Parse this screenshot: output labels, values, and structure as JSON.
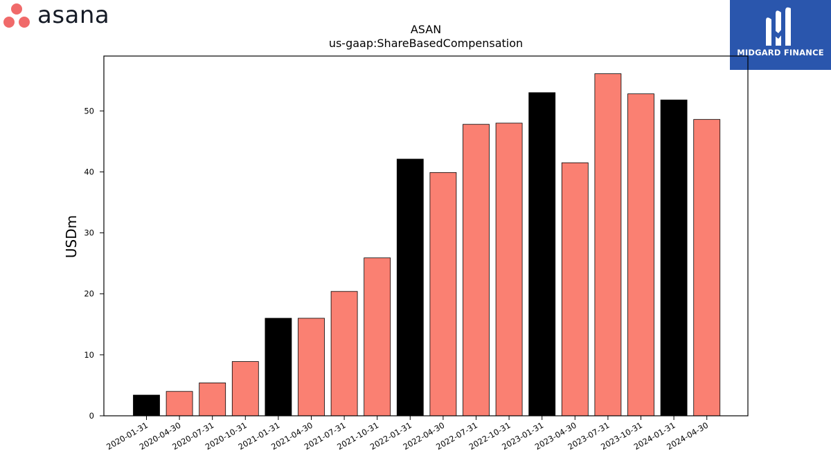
{
  "brand": {
    "logo_icon": "asana-dots-icon",
    "name": "asana",
    "dot_color": "#f06a6a"
  },
  "badge": {
    "icon": "midgard-m-icon",
    "name": "MIDGARD FINANCE",
    "background": "#2a56ad"
  },
  "chart_data": {
    "type": "bar",
    "title": "ASAN",
    "subtitle": "us-gaap:ShareBasedCompensation",
    "xlabel": "",
    "ylabel": "USDm",
    "ylim": [
      0,
      59
    ],
    "yticks": [
      0,
      10,
      20,
      30,
      40,
      50
    ],
    "grid": false,
    "legend": "none",
    "categories": [
      "2020-01-31",
      "2020-04-30",
      "2020-07-31",
      "2020-10-31",
      "2021-01-31",
      "2021-04-30",
      "2021-07-31",
      "2021-10-31",
      "2022-01-31",
      "2022-04-30",
      "2022-07-31",
      "2022-10-31",
      "2023-01-31",
      "2023-04-30",
      "2023-07-31",
      "2023-10-31",
      "2024-01-31",
      "2024-04-30"
    ],
    "values": [
      3.4,
      4.0,
      5.4,
      8.9,
      16.0,
      16.0,
      20.4,
      25.9,
      42.1,
      39.9,
      47.8,
      48.0,
      53.0,
      41.5,
      56.1,
      52.8,
      51.8,
      48.6
    ],
    "highlight_categories": [
      "2020-01-31",
      "2021-01-31",
      "2022-01-31",
      "2023-01-31",
      "2024-01-31"
    ],
    "colors": {
      "default": "#fa8072",
      "highlight": "#000000",
      "edge": "#000000"
    }
  }
}
